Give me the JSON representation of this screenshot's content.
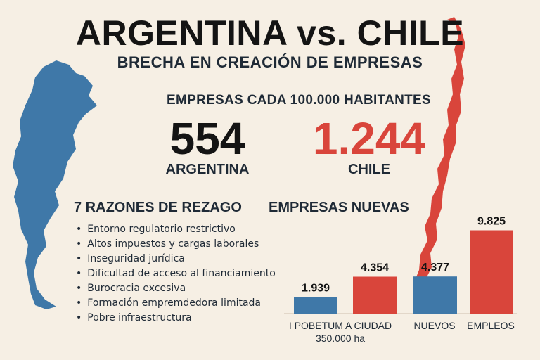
{
  "header": {
    "title": "ARGENTINA vs. CHILE",
    "subtitle": "BRECHA EN CREACIÓN DE EMPRESAS"
  },
  "metric": {
    "heading": "EMPRESAS CADA 100.000 HABITANTES",
    "argentina_value": "554",
    "argentina_label": "ARGENTINA",
    "chile_value": "1.244",
    "chile_label": "CHILE"
  },
  "reasons": {
    "heading": "7 RAZONES DE REZAGO",
    "items": [
      "Entorno regulatorio restrictivo",
      "Altos impuestos y cargas laborales",
      "Inseguridad jurídica",
      "Dificultad de acceso al financiamiento",
      "Burocracia excesiva",
      "Formación empremdedora limitada",
      "Pobre infraestructura"
    ]
  },
  "colors": {
    "argentina": "#3f78a8",
    "chile": "#d9453b",
    "background": "#f6efe4"
  },
  "chart_data": {
    "type": "bar",
    "title": "EMPRESAS NUEVAS",
    "groups": [
      {
        "label_lines": [
          "I POBETUM A CIUDAD",
          "350.000 ha"
        ],
        "bars": [
          {
            "country": "argentina",
            "value": 1939,
            "label": "1.939"
          },
          {
            "country": "chile",
            "value": 4354,
            "label": "4.354"
          }
        ]
      },
      {
        "label_lines": [
          "NUEVOS"
        ],
        "bars": [
          {
            "country": "argentina",
            "value": 4377,
            "label": "4.377"
          }
        ]
      },
      {
        "label_lines": [
          "EMPLEOS"
        ],
        "bars": [
          {
            "country": "chile",
            "value": 9825,
            "label": "9.825"
          }
        ]
      }
    ]
  }
}
